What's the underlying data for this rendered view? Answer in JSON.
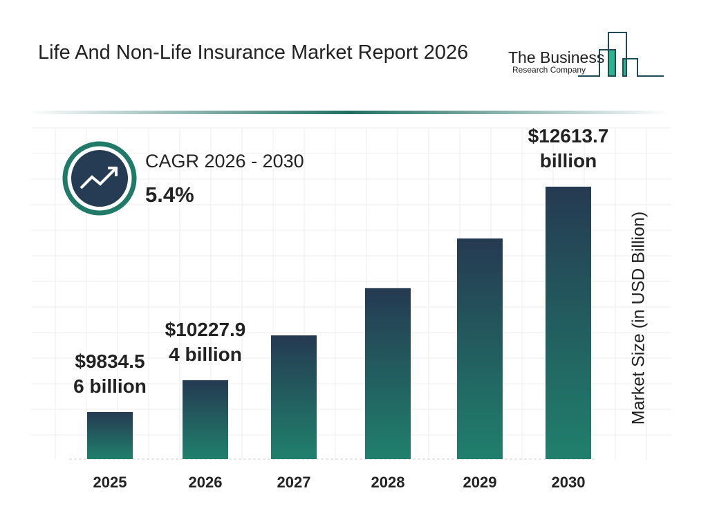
{
  "header": {
    "title": "Life And Non-Life Insurance Market Report 2026"
  },
  "logo": {
    "line1": "The Business",
    "line2": "Research Company"
  },
  "cagr": {
    "label": "CAGR 2026 - 2030",
    "value": "5.4%",
    "icon": "trending-up-icon"
  },
  "colors": {
    "bar_top": "#253a52",
    "bar_bottom": "#20806c",
    "accent": "#1f7a68"
  },
  "chart_data": {
    "type": "bar",
    "title": "Life And Non-Life Insurance Market Report 2026",
    "ylabel": "Market Size (in USD Billion)",
    "xlabel": "",
    "categories": [
      "2025",
      "2026",
      "2027",
      "2028",
      "2029",
      "2030"
    ],
    "values": [
      9834.56,
      10227.94,
      10780.2,
      11362.3,
      11975.9,
      12613.7
    ],
    "data_labels": [
      "$9834.5 6 billion",
      "$10227.9 4 billion",
      "",
      "",
      "",
      "$12613.7 billion"
    ],
    "grid": true
  }
}
